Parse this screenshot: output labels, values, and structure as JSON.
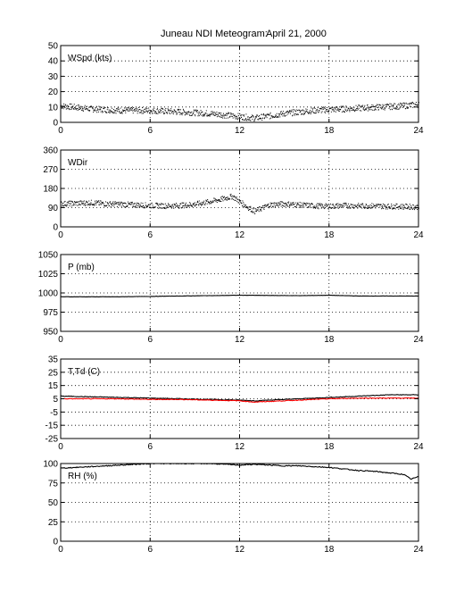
{
  "figure": {
    "title_left": "Juneau NDI Meteogram:",
    "title_right": "April 21, 2000"
  },
  "chart_data": [
    {
      "type": "scatter",
      "label": "WSpd (kts)",
      "x_ticks": [
        0,
        6,
        12,
        18,
        24
      ],
      "xlim": [
        0,
        24
      ],
      "ylim": [
        0,
        50
      ],
      "y_ticks": [
        0,
        10,
        20,
        30,
        40,
        50
      ],
      "grid": true,
      "series": [
        {
          "color": "#000000",
          "x": [
            0,
            1,
            2,
            3,
            4,
            5,
            6,
            7,
            8,
            9,
            10,
            11,
            12,
            13,
            14,
            15,
            16,
            17,
            18,
            19,
            20,
            21,
            22,
            23,
            24
          ],
          "y": [
            11,
            10,
            9,
            8.5,
            8,
            8,
            8,
            7.5,
            7,
            6.5,
            6,
            5,
            4,
            3,
            4.5,
            6,
            7,
            8,
            8.5,
            9,
            9.5,
            10,
            10.5,
            11,
            12
          ]
        }
      ]
    },
    {
      "type": "scatter",
      "label": "WDir",
      "x_ticks": [
        0,
        6,
        12,
        18,
        24
      ],
      "xlim": [
        0,
        24
      ],
      "ylim": [
        0,
        360
      ],
      "y_ticks": [
        0,
        90,
        180,
        270,
        360
      ],
      "grid": true,
      "series": [
        {
          "color": "#000000",
          "x": [
            0,
            1,
            2,
            3,
            4,
            5,
            6,
            7,
            8,
            9,
            10,
            11,
            11.5,
            12,
            12.5,
            13,
            14,
            15,
            16,
            17,
            18,
            19,
            20,
            21,
            22,
            23,
            24
          ],
          "y": [
            110,
            112,
            115,
            110,
            108,
            105,
            102,
            100,
            102,
            108,
            120,
            135,
            145,
            120,
            95,
            75,
            105,
            110,
            105,
            100,
            98,
            102,
            100,
            100,
            98,
            97,
            95
          ]
        }
      ]
    },
    {
      "type": "line",
      "label": "P (mb)",
      "x_ticks": [
        0,
        6,
        12,
        18,
        24
      ],
      "xlim": [
        0,
        24
      ],
      "ylim": [
        950,
        1050
      ],
      "y_ticks": [
        950,
        975,
        1000,
        1025,
        1050
      ],
      "grid": true,
      "series": [
        {
          "color": "#000000",
          "x": [
            0,
            4,
            8,
            12,
            16,
            18,
            20,
            24
          ],
          "y": [
            995,
            995,
            996,
            997,
            996.5,
            997,
            996,
            996
          ]
        }
      ]
    },
    {
      "type": "line",
      "label": "T,Td (C)",
      "x_ticks": [
        0,
        6,
        12,
        18,
        24
      ],
      "xlim": [
        0,
        24
      ],
      "ylim": [
        -25,
        35
      ],
      "y_ticks": [
        -25,
        -15,
        -5,
        5,
        15,
        25,
        35
      ],
      "grid": true,
      "series": [
        {
          "color": "#000000",
          "x": [
            0,
            2,
            4,
            6,
            8,
            10,
            12,
            13,
            14,
            16,
            18,
            20,
            22,
            24
          ],
          "y": [
            7,
            6.5,
            6,
            5.5,
            5,
            4.5,
            4,
            3.5,
            4,
            5,
            6,
            7,
            8,
            8
          ]
        },
        {
          "color": "#ff0000",
          "x": [
            0,
            2,
            4,
            6,
            8,
            10,
            12,
            13,
            14,
            16,
            18,
            20,
            22,
            24
          ],
          "y": [
            5,
            5,
            5,
            4.5,
            4.5,
            4,
            3.5,
            2.5,
            3,
            4,
            5,
            5.5,
            5.5,
            5.5
          ]
        }
      ]
    },
    {
      "type": "line",
      "label": "RH (%)",
      "x_ticks": [
        0,
        6,
        12,
        18,
        24
      ],
      "xlim": [
        0,
        24
      ],
      "ylim": [
        0,
        100
      ],
      "y_ticks": [
        0,
        25,
        50,
        75,
        100
      ],
      "grid": true,
      "series": [
        {
          "color": "#000000",
          "x": [
            0,
            1,
            2,
            3,
            4,
            5,
            6,
            7,
            8,
            9,
            10,
            11,
            12,
            13,
            14,
            15,
            16,
            17,
            18,
            19,
            20,
            21,
            22,
            23,
            23.5,
            24
          ],
          "y": [
            94,
            95,
            96,
            97,
            98,
            99,
            100,
            100,
            100,
            100,
            100,
            99,
            98,
            99,
            98,
            97,
            97,
            96,
            95,
            93,
            91,
            90,
            88,
            86,
            80,
            83
          ]
        }
      ]
    }
  ]
}
